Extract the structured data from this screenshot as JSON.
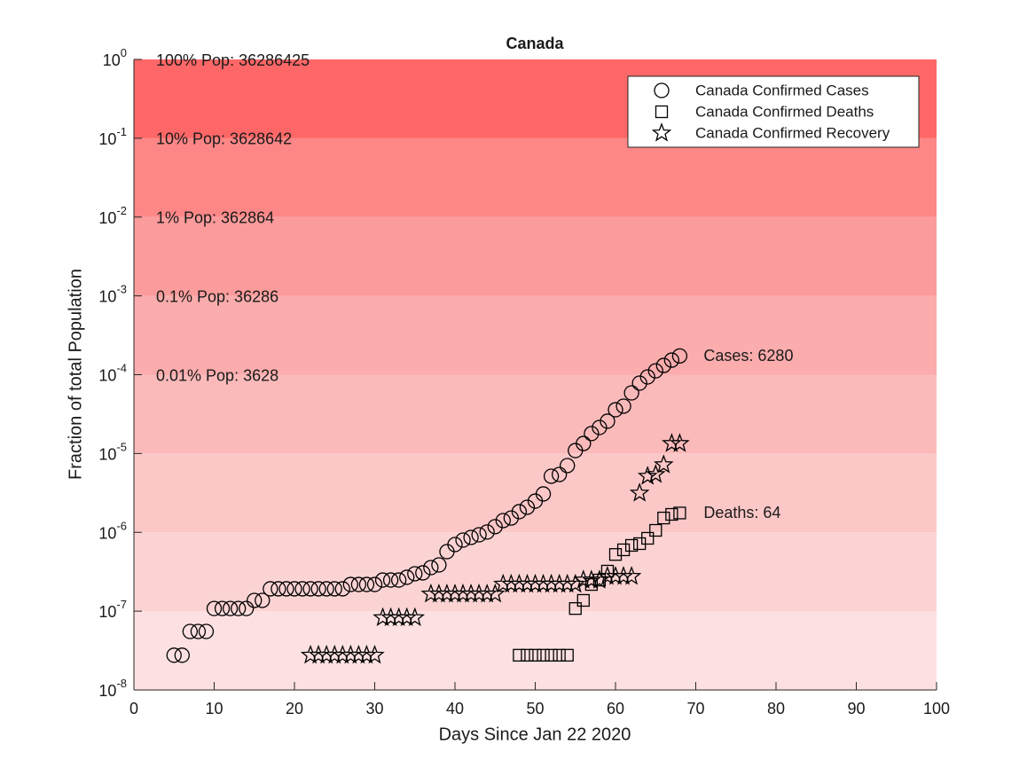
{
  "chart_data": {
    "type": "scatter",
    "title": "Canada",
    "xlabel": "Days Since Jan 22 2020",
    "ylabel": "Fraction of total Population",
    "xlim": [
      0,
      100
    ],
    "xticks": [
      0,
      10,
      20,
      30,
      40,
      50,
      60,
      70,
      80,
      90,
      100
    ],
    "ylim": [
      1e-08,
      1
    ],
    "log_y": true,
    "yticks": [
      {
        "value": 1e-08,
        "label": "10^-8"
      },
      {
        "value": 1e-07,
        "label": "10^-7"
      },
      {
        "value": 1e-06,
        "label": "10^-6"
      },
      {
        "value": 1e-05,
        "label": "10^-5"
      },
      {
        "value": 0.0001,
        "label": "10^-4"
      },
      {
        "value": 0.001,
        "label": "10^-3"
      },
      {
        "value": 0.01,
        "label": "10^-2"
      },
      {
        "value": 0.1,
        "label": "10^-1"
      },
      {
        "value": 1,
        "label": "10^0"
      }
    ],
    "band_colors": [
      "#fde0e1",
      "#fcd3d3",
      "#fcc7c7",
      "#fbbaba",
      "#fbacac",
      "#fc9b9b",
      "#fd8787",
      "#fe6767"
    ],
    "annotations": [
      "100% Pop: 36286425",
      "10% Pop: 3628642",
      "1% Pop: 362864",
      "0.1% Pop: 36286",
      "0.01% Pop: 3628"
    ],
    "legend": "upper right",
    "series": [
      {
        "name": "Canada Confirmed Cases",
        "marker": "circle",
        "color": "#000000",
        "end_label": "Cases: 6280",
        "x": [
          5,
          6,
          7,
          8,
          9,
          10,
          11,
          12,
          13,
          14,
          15,
          16,
          17,
          18,
          19,
          20,
          21,
          22,
          23,
          24,
          25,
          26,
          27,
          28,
          29,
          30,
          31,
          32,
          33,
          34,
          35,
          36,
          37,
          38,
          39,
          40,
          41,
          42,
          43,
          44,
          45,
          46,
          47,
          48,
          49,
          50,
          51,
          52,
          53,
          54,
          55,
          56,
          57,
          58,
          59,
          60,
          61,
          62,
          63,
          64,
          65,
          66,
          67,
          68
        ],
        "values": [
          2.76e-08,
          2.76e-08,
          5.53e-08,
          5.53e-08,
          5.53e-08,
          1.08e-07,
          1.08e-07,
          1.08e-07,
          1.08e-07,
          1.08e-07,
          1.37e-07,
          1.37e-07,
          1.92e-07,
          1.92e-07,
          1.92e-07,
          1.92e-07,
          1.92e-07,
          1.92e-07,
          1.92e-07,
          1.92e-07,
          1.92e-07,
          1.92e-07,
          2.18e-07,
          2.18e-07,
          2.18e-07,
          2.18e-07,
          2.48e-07,
          2.48e-07,
          2.48e-07,
          2.69e-07,
          2.98e-07,
          3.06e-07,
          3.57e-07,
          3.86e-07,
          5.69e-07,
          7e-07,
          7.97e-07,
          8.62e-07,
          9.31e-07,
          1.01e-06,
          1.18e-06,
          1.41e-06,
          1.52e-06,
          1.83e-06,
          2.08e-06,
          2.49e-06,
          3.07e-06,
          5.15e-06,
          5.42e-06,
          7.03e-06,
          1.09e-05,
          1.34e-05,
          1.79e-05,
          2.14e-05,
          2.57e-05,
          3.59e-05,
          3.99e-05,
          5.88e-05,
          7.82e-05,
          9.37e-05,
          0.000112,
          0.000131,
          0.000153,
          0.000173
        ]
      },
      {
        "name": "Canada Confirmed Deaths",
        "marker": "square",
        "color": "#000000",
        "end_label": "Deaths: 64",
        "x": [
          48,
          49,
          50,
          51,
          52,
          53,
          54,
          55,
          56,
          57,
          58,
          59,
          60,
          61,
          62,
          63,
          64,
          65,
          66,
          67,
          68
        ],
        "values": [
          2.76e-08,
          2.76e-08,
          2.76e-08,
          2.76e-08,
          2.76e-08,
          2.76e-08,
          2.76e-08,
          1.08e-07,
          1.37e-07,
          2.18e-07,
          2.48e-07,
          3.22e-07,
          5.24e-07,
          6e-07,
          6.83e-07,
          7.19e-07,
          8.4e-07,
          1.06e-06,
          1.52e-06,
          1.69e-06,
          1.76e-06
        ]
      },
      {
        "name": "Canada Confirmed Recovery",
        "marker": "star",
        "color": "#000000",
        "x": [
          22,
          23,
          24,
          25,
          26,
          27,
          28,
          29,
          30,
          31,
          32,
          33,
          34,
          35,
          37,
          38,
          39,
          40,
          41,
          42,
          43,
          44,
          45,
          46,
          47,
          48,
          49,
          50,
          51,
          52,
          53,
          54,
          55,
          56,
          57,
          58,
          59,
          60,
          61,
          62,
          63,
          64,
          65,
          66,
          67,
          68
        ],
        "values": [
          2.76e-08,
          2.76e-08,
          2.76e-08,
          2.76e-08,
          2.76e-08,
          2.76e-08,
          2.76e-08,
          2.76e-08,
          2.76e-08,
          8.27e-08,
          8.27e-08,
          8.27e-08,
          8.27e-08,
          8.27e-08,
          1.65e-07,
          1.65e-07,
          1.65e-07,
          1.65e-07,
          1.65e-07,
          1.65e-07,
          1.65e-07,
          1.65e-07,
          1.65e-07,
          2.2e-07,
          2.2e-07,
          2.2e-07,
          2.2e-07,
          2.2e-07,
          2.2e-07,
          2.2e-07,
          2.2e-07,
          2.2e-07,
          2.2e-07,
          2.48e-07,
          2.48e-07,
          2.48e-07,
          2.76e-07,
          2.76e-07,
          2.76e-07,
          2.76e-07,
          3.15e-06,
          5.15e-06,
          5.42e-06,
          7.2e-06,
          1.34e-05,
          1.34e-05
        ]
      }
    ]
  }
}
